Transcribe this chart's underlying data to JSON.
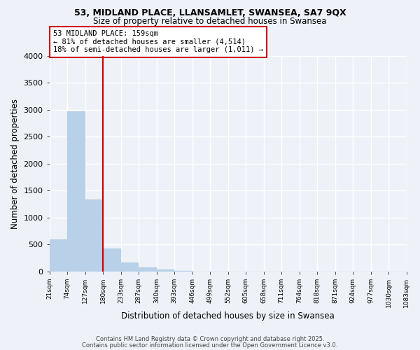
{
  "title": "53, MIDLAND PLACE, LLANSAMLET, SWANSEA, SA7 9QX",
  "subtitle": "Size of property relative to detached houses in Swansea",
  "xlabel": "Distribution of detached houses by size in Swansea",
  "ylabel": "Number of detached properties",
  "bar_values": [
    600,
    2970,
    1330,
    420,
    170,
    80,
    40,
    10,
    0,
    0,
    0,
    0,
    0,
    0,
    0,
    0,
    0,
    0,
    0,
    0
  ],
  "bar_labels": [
    "21sqm",
    "74sqm",
    "127sqm",
    "180sqm",
    "233sqm",
    "287sqm",
    "340sqm",
    "393sqm",
    "446sqm",
    "499sqm",
    "552sqm",
    "605sqm",
    "658sqm",
    "711sqm",
    "764sqm",
    "818sqm",
    "871sqm",
    "924sqm",
    "977sqm",
    "1030sqm",
    "1083sqm"
  ],
  "bar_color": "#b8d0e8",
  "bar_edge_color": "#b8d0e8",
  "vline_color": "#cc0000",
  "annotation_text": "53 MIDLAND PLACE: 159sqm\n← 81% of detached houses are smaller (4,514)\n18% of semi-detached houses are larger (1,011) →",
  "annotation_box_color": "#cc0000",
  "annotation_fontsize": 7.5,
  "ylim": [
    0,
    4000
  ],
  "yticks": [
    0,
    500,
    1000,
    1500,
    2000,
    2500,
    3000,
    3500,
    4000
  ],
  "background_color": "#eef2f8",
  "grid_color": "#ffffff",
  "footer1": "Contains HM Land Registry data © Crown copyright and database right 2025.",
  "footer2": "Contains public sector information licensed under the Open Government Licence v3.0."
}
